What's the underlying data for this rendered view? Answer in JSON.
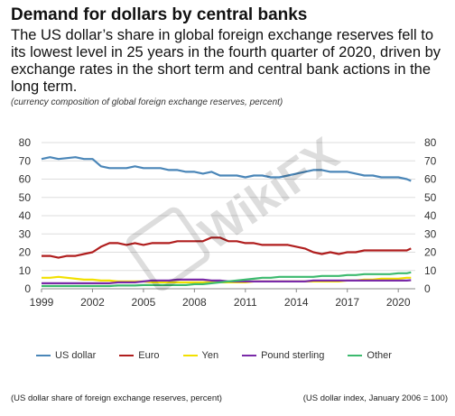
{
  "header": {
    "title": "Demand for dollars by central banks",
    "subtitle": "The US dollar’s share in global foreign exchange reserves fell to its lowest level in 25 years in the fourth quarter of 2020, driven by exchange rates in the short term and central bank actions in the long term.",
    "note": "(currency composition of global foreign exchange reserves, percent)"
  },
  "footer": {
    "left": "(US dollar share of foreign exchange reserves, percent)",
    "right": "(US dollar index, January 2006 = 100)"
  },
  "watermark": {
    "text": "WikiFX"
  },
  "chart_data": {
    "type": "line",
    "title": "",
    "xlabel": "",
    "ylabel": "",
    "xlim": [
      1999,
      2021
    ],
    "ylim": [
      0,
      80
    ],
    "y_ticks": [
      0,
      10,
      20,
      30,
      40,
      50,
      60,
      70,
      80
    ],
    "x_ticks": [
      1999,
      2002,
      2005,
      2008,
      2011,
      2014,
      2017,
      2020
    ],
    "dual_axis_labels": true,
    "grid": "horizontal",
    "legend_position": "bottom",
    "x": [
      1999,
      1999.5,
      2000,
      2000.5,
      2001,
      2001.5,
      2002,
      2002.5,
      2003,
      2003.5,
      2004,
      2004.5,
      2005,
      2005.5,
      2006,
      2006.5,
      2007,
      2007.5,
      2008,
      2008.5,
      2009,
      2009.5,
      2010,
      2010.5,
      2011,
      2011.5,
      2012,
      2012.5,
      2013,
      2013.5,
      2014,
      2014.5,
      2015,
      2015.5,
      2016,
      2016.5,
      2017,
      2017.5,
      2018,
      2018.5,
      2019,
      2019.5,
      2020,
      2020.5,
      2020.75
    ],
    "series": [
      {
        "name": "US dollar",
        "color": "#4a86b8",
        "values": [
          71,
          72,
          71,
          71.5,
          72,
          71,
          71,
          67,
          66,
          66,
          66,
          67,
          66,
          66,
          66,
          65,
          65,
          64,
          64,
          63,
          64,
          62,
          62,
          62,
          61,
          62,
          62,
          61,
          61,
          62,
          63,
          64,
          65,
          65,
          64,
          64,
          64,
          63,
          62,
          62,
          61,
          61,
          61,
          60,
          59
        ]
      },
      {
        "name": "Euro",
        "color": "#b01e1e",
        "values": [
          18,
          18,
          17,
          18,
          18,
          19,
          20,
          23,
          25,
          25,
          24,
          25,
          24,
          25,
          25,
          25,
          26,
          26,
          26,
          26,
          28,
          28,
          26,
          26,
          25,
          25,
          24,
          24,
          24,
          24,
          23,
          22,
          20,
          19,
          20,
          19,
          20,
          20,
          21,
          21,
          21,
          21,
          21,
          21,
          22
        ]
      },
      {
        "name": "Yen",
        "color": "#f2e000",
        "values": [
          6,
          6,
          6.5,
          6,
          5.5,
          5,
          5,
          4.5,
          4.5,
          4,
          4,
          4,
          4,
          3.5,
          3.5,
          3.5,
          3.5,
          3.5,
          3.5,
          3.5,
          3.5,
          3.5,
          3.5,
          3.5,
          3.5,
          4,
          4,
          4,
          4,
          4,
          4,
          4,
          4,
          4,
          4,
          4,
          4.5,
          4.5,
          5,
          5,
          5.5,
          5.5,
          5.5,
          6,
          6
        ]
      },
      {
        "name": "Pound sterling",
        "color": "#7a2aa8",
        "values": [
          3,
          3,
          3,
          3,
          3,
          3,
          3,
          3,
          3,
          3.5,
          3.5,
          3.5,
          4,
          4.5,
          4.5,
          4.5,
          5,
          5,
          5,
          5,
          4.5,
          4.5,
          4,
          4,
          4,
          4,
          4,
          4,
          4,
          4,
          4,
          4,
          4.5,
          4.5,
          4.5,
          4.5,
          4.5,
          4.5,
          4.5,
          4.5,
          4.5,
          4.5,
          4.5,
          4.5,
          4.7
        ]
      },
      {
        "name": "Other",
        "color": "#3cba6e",
        "values": [
          1.5,
          1.5,
          1.5,
          1.5,
          1.5,
          1.5,
          1.5,
          1.5,
          1.5,
          1.8,
          1.8,
          1.8,
          2,
          2,
          2,
          2,
          2,
          2,
          2.5,
          2.5,
          3,
          3.5,
          4,
          4.5,
          5,
          5.5,
          6,
          6,
          6.5,
          6.5,
          6.5,
          6.5,
          6.5,
          7,
          7,
          7,
          7.5,
          7.5,
          8,
          8,
          8,
          8,
          8.5,
          8.5,
          9
        ]
      }
    ]
  }
}
